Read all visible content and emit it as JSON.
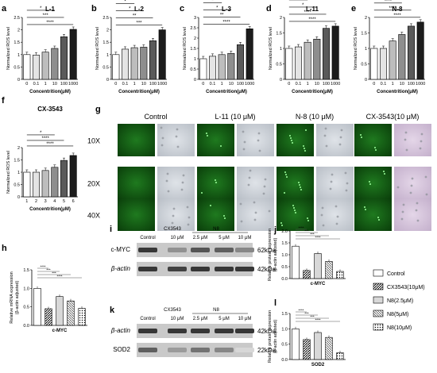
{
  "panel_letters": [
    "a",
    "b",
    "c",
    "d",
    "e",
    "f",
    "g",
    "h",
    "i",
    "j",
    "k",
    "l"
  ],
  "ros_ylabel": "Normalized ROS level",
  "ros_xlabel": "Concentrition(μM)",
  "ros_yticks": [
    "0",
    "0.5",
    "1",
    "1.5",
    "2",
    "2.5",
    "3"
  ],
  "stars_labels": [
    "*",
    "**",
    "***",
    "****"
  ],
  "chart_data": [
    {
      "panel": "a",
      "type": "bar",
      "title": "L-1",
      "categories": [
        "0",
        "0.1",
        "1",
        "10",
        "100",
        "1000"
      ],
      "values": [
        1.0,
        0.98,
        1.1,
        1.25,
        1.72,
        2.02
      ],
      "ylim": [
        0,
        2.5
      ],
      "yticks": [
        0,
        0.5,
        1,
        1.5,
        2,
        2.5
      ],
      "sig": [
        {
          "to": 3,
          "label": "*"
        },
        {
          "to": 4,
          "label": "***"
        },
        {
          "to": 5,
          "label": "****"
        }
      ]
    },
    {
      "panel": "b",
      "type": "bar",
      "title": "L-2",
      "categories": [
        "0",
        "0.1",
        "1",
        "10",
        "100",
        "1000"
      ],
      "values": [
        1.0,
        1.22,
        1.28,
        1.3,
        1.56,
        2.0
      ],
      "ylim": [
        0,
        2.5
      ],
      "yticks": [
        0,
        0.5,
        1,
        1.5,
        2,
        2.5
      ],
      "sig": [
        {
          "to": 2,
          "label": "*"
        },
        {
          "to": 3,
          "label": "*"
        },
        {
          "to": 4,
          "label": "**"
        },
        {
          "to": 5,
          "label": "***"
        }
      ]
    },
    {
      "panel": "c",
      "type": "bar",
      "title": "L-3",
      "categories": [
        "0",
        "0.1",
        "1",
        "10",
        "100",
        "1000"
      ],
      "values": [
        1.0,
        1.12,
        1.2,
        1.26,
        1.68,
        2.45
      ],
      "ylim": [
        0,
        3
      ],
      "yticks": [
        0,
        0.5,
        1,
        1.5,
        2,
        2.5,
        3
      ],
      "sig": [
        {
          "to": 2,
          "label": "*"
        },
        {
          "to": 3,
          "label": "*"
        },
        {
          "to": 4,
          "label": "**"
        },
        {
          "to": 5,
          "label": "****"
        }
      ]
    },
    {
      "panel": "d",
      "type": "bar",
      "title": "L-11",
      "categories": [
        "0",
        "0.1",
        "1",
        "10",
        "100",
        "1000"
      ],
      "values": [
        1.0,
        1.05,
        1.2,
        1.3,
        1.65,
        1.72
      ],
      "ylim": [
        0,
        2
      ],
      "yticks": [
        0,
        0.5,
        1,
        1.5,
        2
      ],
      "sig": [
        {
          "to": 2,
          "label": "*"
        },
        {
          "to": 3,
          "label": "*"
        },
        {
          "to": 4,
          "label": "****"
        },
        {
          "to": 5,
          "label": "****"
        }
      ]
    },
    {
      "panel": "e",
      "type": "bar",
      "title": "N-8",
      "categories": [
        "0",
        "0.1",
        "1",
        "10",
        "100",
        "1000"
      ],
      "values": [
        1.0,
        1.0,
        1.24,
        1.45,
        1.72,
        1.85
      ],
      "ylim": [
        0,
        2
      ],
      "yticks": [
        0,
        0.5,
        1,
        1.5,
        2
      ],
      "sig": [
        {
          "to": 2,
          "label": "**"
        },
        {
          "to": 3,
          "label": "****"
        },
        {
          "to": 4,
          "label": "****"
        },
        {
          "to": 5,
          "label": "****"
        }
      ]
    },
    {
      "panel": "f",
      "type": "bar",
      "title": "CX-3543",
      "categories": [
        "1",
        "2",
        "3",
        "4",
        "5",
        "6"
      ],
      "values": [
        1.0,
        1.0,
        1.07,
        1.2,
        1.48,
        1.68
      ],
      "ylim": [
        0,
        2
      ],
      "yticks": [
        0,
        0.5,
        1,
        1.5,
        2
      ],
      "sig": [
        {
          "to": 3,
          "label": "*"
        },
        {
          "to": 4,
          "label": "****"
        },
        {
          "to": 5,
          "label": "****"
        }
      ]
    },
    {
      "panel": "h",
      "type": "bar",
      "ylabel": "Relative mRNA expression\n(β-actin adjusted)",
      "xlabel": "c-MYC",
      "values": [
        1.0,
        0.45,
        0.78,
        0.66,
        0.46
      ],
      "ylim": [
        0,
        1.5
      ],
      "yticks": [
        "0.0",
        "0.5",
        "1.0",
        "1.5"
      ]
    },
    {
      "panel": "j",
      "type": "bar",
      "ylabel": "Relative protein expression\n(β-actin adjusted)",
      "xlabel": "c-MYC",
      "values": [
        1.36,
        0.34,
        1.05,
        0.72,
        0.3
      ],
      "ylim": [
        0,
        2
      ],
      "yticks": [
        "0.0",
        "0.5",
        "1.0",
        "1.5",
        "2.0"
      ]
    },
    {
      "panel": "l",
      "type": "bar",
      "ylabel": "Relative protein expression\n(β-actin adjusted)",
      "xlabel": "SOD2",
      "values": [
        1.0,
        0.65,
        0.88,
        0.72,
        0.22
      ],
      "ylim": [
        0,
        1.5
      ],
      "yticks": [
        "0.0",
        "0.5",
        "1.0",
        "1.5"
      ]
    }
  ],
  "microscopy": {
    "columns": [
      "Control",
      "L-11  (10 μM)",
      "N-8  (10 μM)",
      "CX-3543(10 μM)"
    ],
    "rows": [
      "10X",
      "20X",
      "40X"
    ]
  },
  "blot_i": {
    "header_groups": [
      "CX3543",
      "N8"
    ],
    "columns": [
      "Control",
      "10 μM",
      "2.5 μM",
      "5 μM",
      "10 μM"
    ],
    "proteins": [
      "c-MYC",
      "β-actin"
    ],
    "sizes": [
      "62kDa",
      "42kDa"
    ],
    "intensity": [
      [
        1.0,
        0.55,
        0.85,
        0.8,
        0.6
      ],
      [
        1.0,
        0.95,
        1.0,
        1.0,
        1.0
      ]
    ]
  },
  "blot_k": {
    "header_groups": [
      "CX3543",
      "N8"
    ],
    "columns": [
      "Control",
      "10 μM",
      "2.5 μM",
      "5 μM",
      "10 μM"
    ],
    "proteins": [
      "β-actin",
      "SOD2"
    ],
    "sizes": [
      "42kDa",
      "22kDa"
    ],
    "intensity": [
      [
        1.0,
        1.0,
        1.0,
        1.0,
        1.0
      ],
      [
        0.8,
        0.5,
        0.7,
        0.6,
        0.2
      ]
    ]
  },
  "legend": [
    "Control",
    "CX3543(10μM)",
    "N8(2.5μM)",
    "N8(5μM)",
    "N8(10μM)"
  ]
}
